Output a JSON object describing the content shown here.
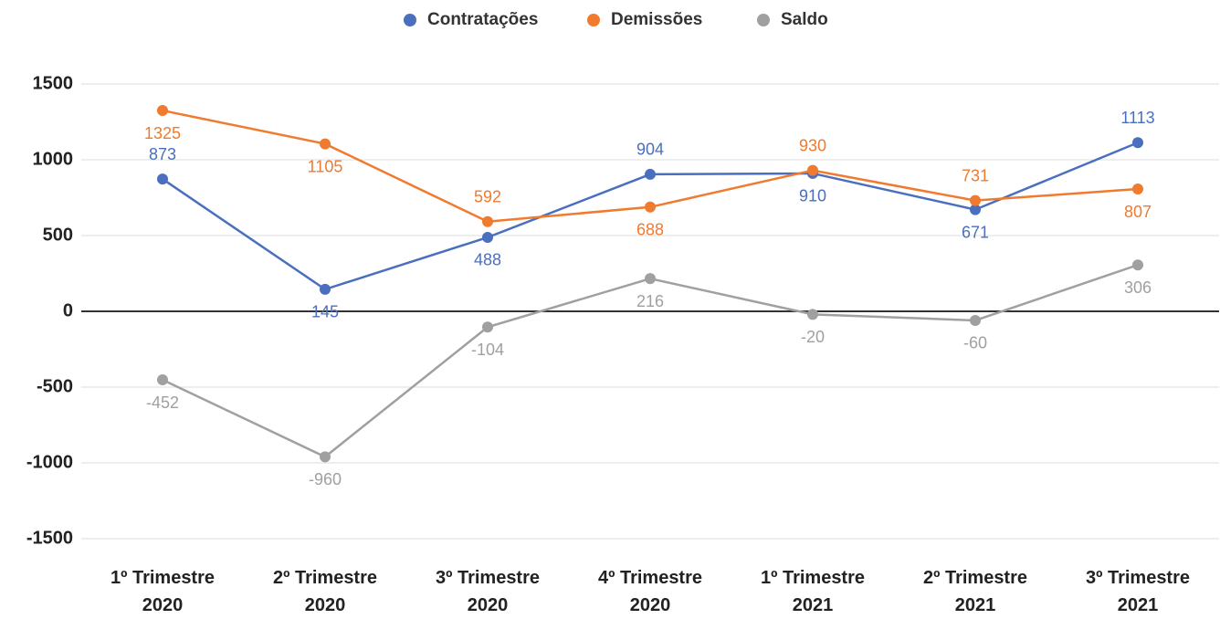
{
  "chart_data": {
    "type": "line",
    "categories": [
      "1º Trimestre 2020",
      "2º Trimestre 2020",
      "3º Trimestre 2020",
      "4º Trimestre 2020",
      "1º Trimestre 2021",
      "2º Trimestre 2021",
      "3º Trimestre 2021"
    ],
    "series": [
      {
        "name": "Contratações",
        "color": "#4a6fbf",
        "values": [
          873,
          145,
          488,
          904,
          910,
          671,
          1113
        ]
      },
      {
        "name": "Demissões",
        "color": "#f07a2e",
        "values": [
          1325,
          1105,
          592,
          688,
          930,
          731,
          807
        ]
      },
      {
        "name": "Saldo",
        "color": "#a0a0a0",
        "values": [
          -452,
          -960,
          -104,
          216,
          -20,
          -60,
          306
        ]
      }
    ],
    "ylim": [
      -1500,
      1500
    ],
    "yticks": [
      -1500,
      -1000,
      -500,
      0,
      500,
      1000,
      1500
    ],
    "grid": true,
    "legend": "top"
  }
}
